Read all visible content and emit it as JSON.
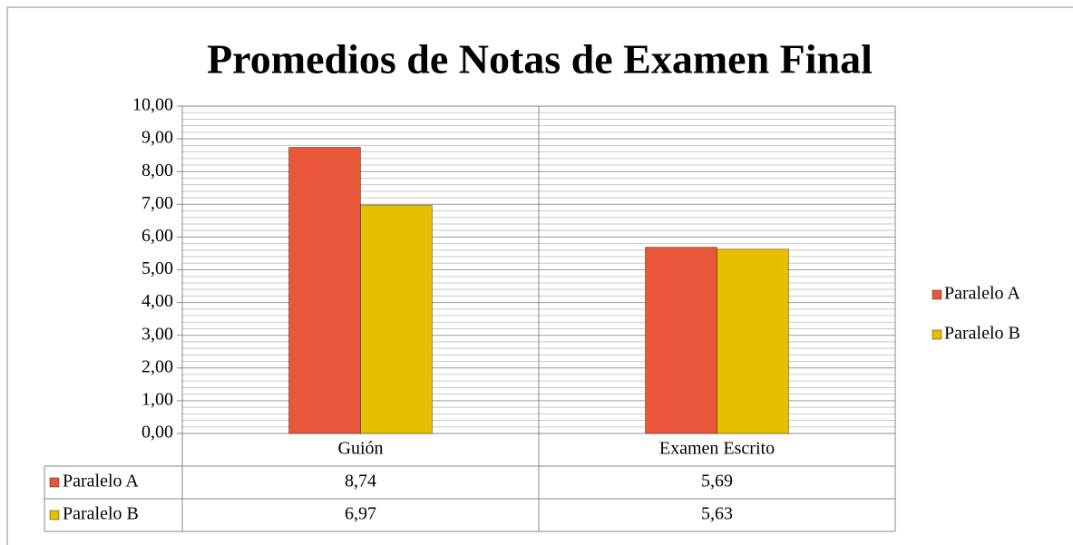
{
  "chart_data": {
    "type": "bar",
    "title": "Promedios de Notas de Examen Final",
    "categories": [
      "Guión",
      "Examen Escrito"
    ],
    "series": [
      {
        "name": "Paralelo A",
        "color": "#e8573a",
        "values": [
          8.74,
          5.69
        ],
        "value_labels": [
          "8,74",
          "5,69"
        ]
      },
      {
        "name": "Paralelo B",
        "color": "#e6c000",
        "values": [
          6.97,
          5.63
        ],
        "value_labels": [
          "6,97",
          "5,63"
        ]
      }
    ],
    "ylim": [
      0,
      10
    ],
    "yticks": [
      {
        "value": 0,
        "label": "0,00"
      },
      {
        "value": 1,
        "label": "1,00"
      },
      {
        "value": 2,
        "label": "2,00"
      },
      {
        "value": 3,
        "label": "3,00"
      },
      {
        "value": 4,
        "label": "4,00"
      },
      {
        "value": 5,
        "label": "5,00"
      },
      {
        "value": 6,
        "label": "6,00"
      },
      {
        "value": 7,
        "label": "7,00"
      },
      {
        "value": 8,
        "label": "8,00"
      },
      {
        "value": 9,
        "label": "9,00"
      },
      {
        "value": 10,
        "label": "10,00"
      }
    ],
    "grid": true,
    "minor_grid": true,
    "legend": "right",
    "data_table": true
  }
}
